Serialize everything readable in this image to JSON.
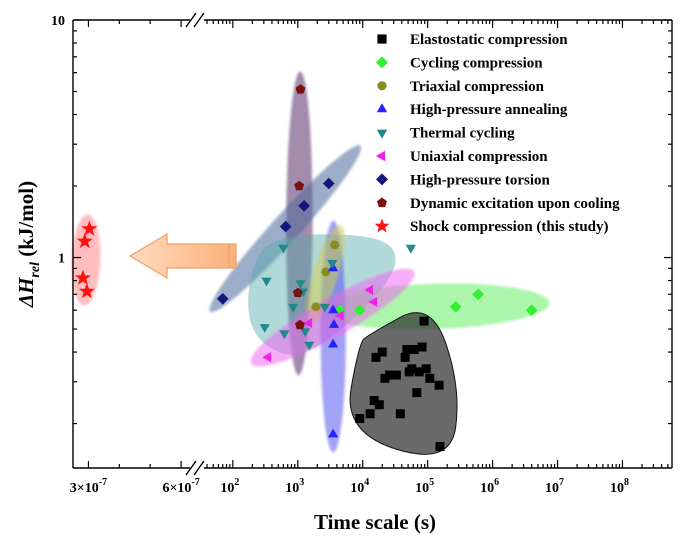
{
  "chart_data": {
    "type": "scatter",
    "xlabel": "Time scale (s)",
    "ylabel_main": "ΔH",
    "ylabel_sub": "rel",
    "ylabel_unit": " (kJ/mol)",
    "y_scale": "log",
    "ylim": [
      0.13,
      10
    ],
    "y_ticks": [
      {
        "value": 10,
        "label": "10"
      },
      {
        "value": 1,
        "label": "1"
      }
    ],
    "x_broken_axis": true,
    "x_left_segment": {
      "xlim": [
        2.5e-07,
        7e-07
      ],
      "ticks": [
        {
          "value": 3e-07,
          "label": "3×10",
          "exp": "-7"
        },
        {
          "value": 6e-07,
          "label": "6×10",
          "exp": "-7"
        }
      ]
    },
    "x_right_segment": {
      "scale": "log",
      "xlim": [
        40,
        600000000
      ],
      "ticks": [
        {
          "value": 100,
          "base": "10",
          "exp": "2"
        },
        {
          "value": 1000,
          "base": "10",
          "exp": "3"
        },
        {
          "value": 10000,
          "base": "10",
          "exp": "4"
        },
        {
          "value": 100000,
          "base": "10",
          "exp": "5"
        },
        {
          "value": 1000000,
          "base": "10",
          "exp": "6"
        },
        {
          "value": 10000000,
          "base": "10",
          "exp": "7"
        },
        {
          "value": 100000000,
          "base": "10",
          "exp": "8"
        }
      ]
    },
    "legend_position": "top-right",
    "series": [
      {
        "name": "Elastostatic compression",
        "marker": "square",
        "color": "#000000",
        "region_color": "#303030",
        "points": [
          [
            9000,
            0.21
          ],
          [
            15000,
            0.25
          ],
          [
            13000,
            0.22
          ],
          [
            18000,
            0.24
          ],
          [
            22000,
            0.31
          ],
          [
            20000,
            0.4
          ],
          [
            16000,
            0.38
          ],
          [
            26000,
            0.32
          ],
          [
            33000,
            0.32
          ],
          [
            38000,
            0.22
          ],
          [
            45000,
            0.38
          ],
          [
            48000,
            0.41
          ],
          [
            52000,
            0.33
          ],
          [
            57000,
            0.34
          ],
          [
            62000,
            0.41
          ],
          [
            68000,
            0.27
          ],
          [
            74000,
            0.33
          ],
          [
            82000,
            0.42
          ],
          [
            88000,
            0.54
          ],
          [
            95000,
            0.34
          ],
          [
            108000,
            0.31
          ],
          [
            150000,
            0.29
          ],
          [
            155000,
            0.16
          ]
        ]
      },
      {
        "name": "Cycling compression",
        "marker": "diamond",
        "color": "#33ee33",
        "region_color": "#66ee66",
        "points": [
          [
            4500,
            0.6
          ],
          [
            9000,
            0.6
          ],
          [
            270000,
            0.62
          ],
          [
            600000,
            0.7
          ],
          [
            4000000,
            0.6
          ]
        ]
      },
      {
        "name": "Triaxial compression",
        "marker": "circle",
        "color": "#8b8b22",
        "region_color": "#cccc55",
        "points": [
          [
            1900,
            0.62
          ],
          [
            2700,
            0.87
          ],
          [
            3700,
            1.13
          ]
        ]
      },
      {
        "name": "High-pressure annealing",
        "marker": "triangle-up",
        "color": "#2222ff",
        "region_color": "#5555ee",
        "points": [
          [
            3500,
            0.9
          ],
          [
            3500,
            0.6
          ],
          [
            3600,
            0.52
          ],
          [
            3500,
            0.43
          ],
          [
            3500,
            0.18
          ]
        ]
      },
      {
        "name": "Thermal cycling",
        "marker": "triangle-down",
        "color": "#22888a",
        "region_color": "#55aaaa",
        "points": [
          [
            330,
            0.8
          ],
          [
            310,
            0.51
          ],
          [
            600,
            1.1
          ],
          [
            620,
            0.48
          ],
          [
            850,
            0.62
          ],
          [
            1100,
            0.78
          ],
          [
            1200,
            0.72
          ],
          [
            1300,
            0.49
          ],
          [
            1500,
            0.43
          ],
          [
            2600,
            0.62
          ],
          [
            3400,
            0.95
          ],
          [
            55000,
            1.1
          ]
        ]
      },
      {
        "name": "Uniaxial compression",
        "marker": "triangle-left",
        "color": "#ee22ee",
        "region_color": "#ee66ee",
        "points": [
          [
            350,
            0.38
          ],
          [
            1500,
            0.53
          ],
          [
            4600,
            0.57
          ],
          [
            13000,
            0.73
          ],
          [
            15000,
            0.65
          ]
        ]
      },
      {
        "name": "High-pressure torsion",
        "marker": "diamond",
        "color": "#16167a",
        "region_color": "#4a6a9a",
        "points": [
          [
            70,
            0.67
          ],
          [
            650,
            1.35
          ],
          [
            1250,
            1.65
          ],
          [
            3000,
            2.05
          ]
        ]
      },
      {
        "name": "Dynamic excitation upon cooling",
        "marker": "pentagon",
        "color": "#7a1010",
        "region_color": "#7a5a88",
        "points": [
          [
            1100,
            5.1
          ],
          [
            1050,
            2.0
          ],
          [
            1000,
            0.71
          ],
          [
            1080,
            0.52
          ]
        ]
      },
      {
        "name": "Shock compression (this study)",
        "marker": "star",
        "color": "#ff1111",
        "region_color": "#ff8888",
        "segment": "left",
        "points": [
          [
            3.03e-07,
            1.32
          ],
          [
            2.88e-07,
            1.17
          ],
          [
            2.82e-07,
            0.82
          ],
          [
            2.95e-07,
            0.72
          ]
        ]
      }
    ]
  }
}
